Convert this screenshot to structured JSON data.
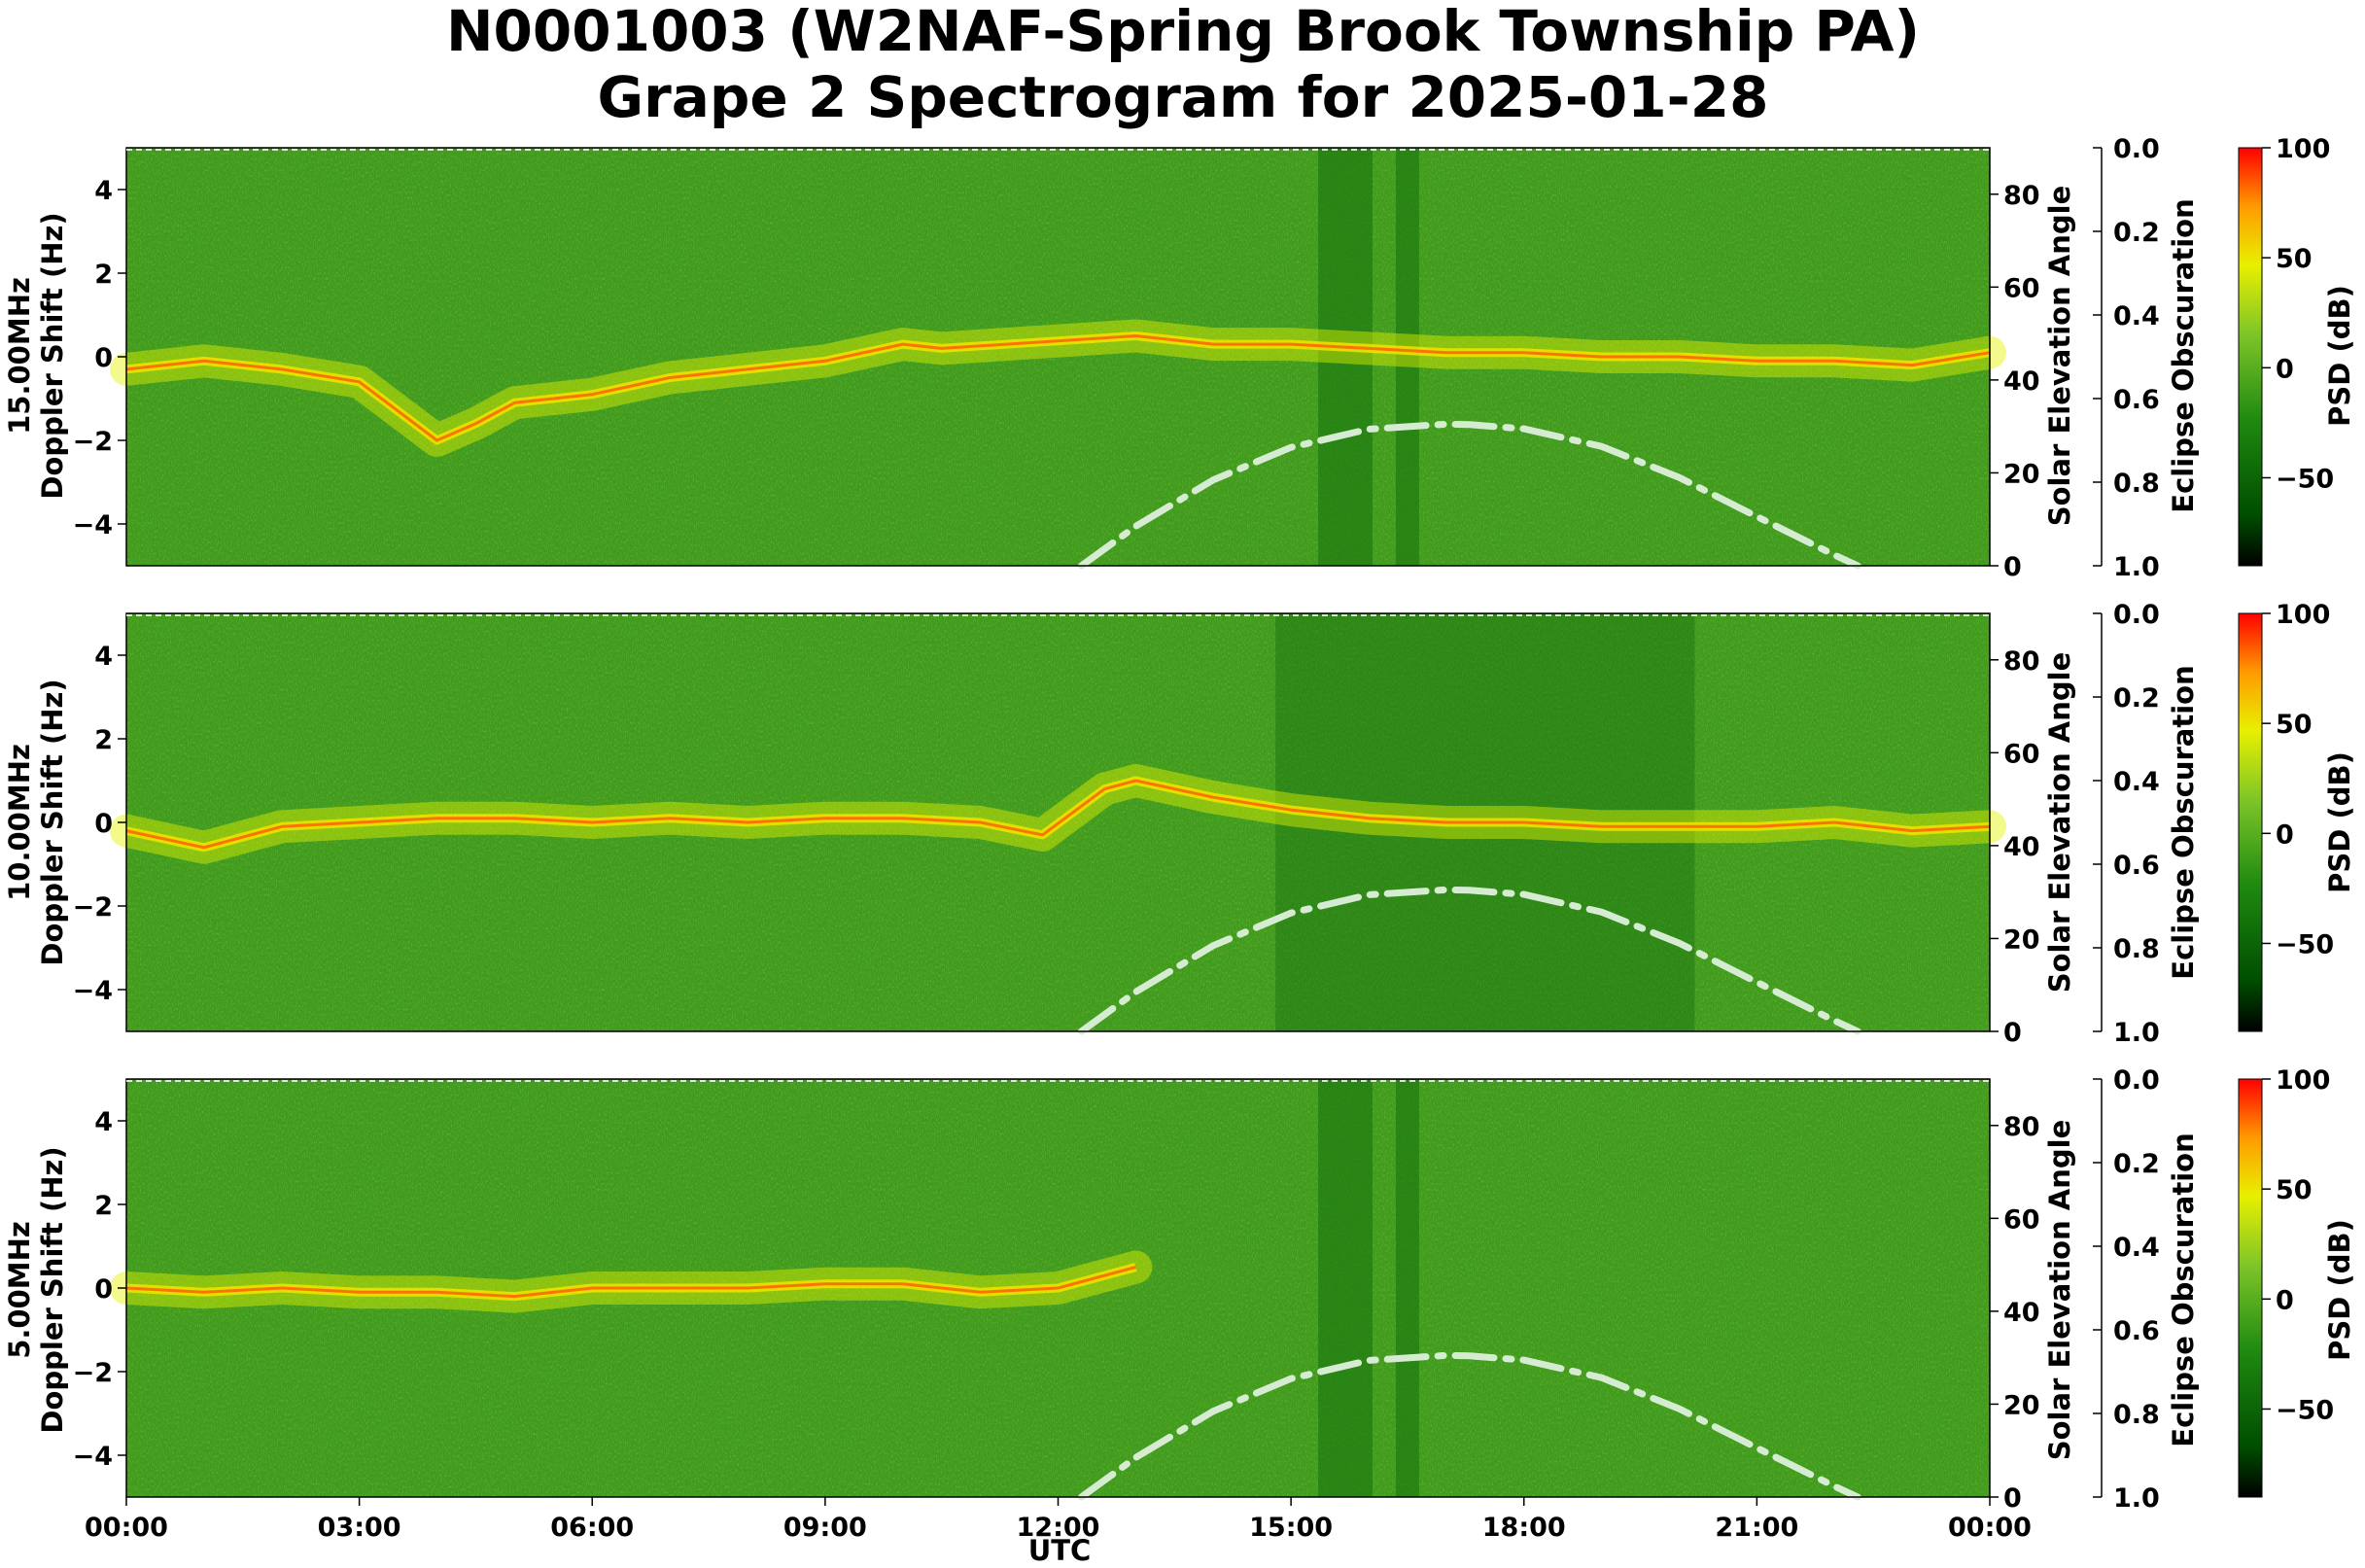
{
  "title": {
    "line1": "N0001003 (W2NAF-Spring Brook Township PA)",
    "line2": "Grape 2 Spectrogram for 2025-01-28"
  },
  "x_axis": {
    "label": "UTC",
    "ticks": [
      "00:00",
      "03:00",
      "06:00",
      "09:00",
      "12:00",
      "15:00",
      "18:00",
      "21:00",
      "00:00"
    ]
  },
  "colors": {
    "colormap": [
      "#000000",
      "#006400",
      "#2e9c14",
      "#9acd32",
      "#ffff00",
      "#ff9800",
      "#ff0000"
    ],
    "elevation_curve": "#d6ecd2",
    "background_field": "#3f9a1e"
  },
  "chart_data": [
    {
      "type": "heatmap",
      "frequency_label": "15.00MHz",
      "ylabel": "Doppler Shift (Hz)",
      "ylim": [
        -5,
        5
      ],
      "yticks": [
        "−4",
        "−2",
        "0",
        "2",
        "4"
      ],
      "xlabel": "UTC",
      "xlim_hours": [
        0,
        24
      ],
      "doppler_trace": {
        "hours": [
          0,
          1,
          2,
          3,
          4,
          4.5,
          5,
          6,
          7,
          8,
          9,
          10,
          10.5,
          13,
          14,
          15,
          16,
          17,
          18,
          19,
          20,
          21,
          22,
          23,
          24
        ],
        "shift_hz": [
          -0.3,
          -0.1,
          -0.3,
          -0.6,
          -2.0,
          -1.6,
          -1.1,
          -0.9,
          -0.5,
          -0.3,
          -0.1,
          0.3,
          0.2,
          0.5,
          0.3,
          0.3,
          0.2,
          0.1,
          0.1,
          0.0,
          0.0,
          -0.1,
          -0.1,
          -0.2,
          0.1
        ]
      },
      "right_axis_1": {
        "label": "Solar Elevation Angle",
        "ylim": [
          0,
          90
        ],
        "ticks": [
          "0",
          "20",
          "40",
          "60",
          "80"
        ]
      },
      "right_axis_2": {
        "label": "Eclipse Obscuration",
        "ylim": [
          1.0,
          0.0
        ],
        "ticks": [
          "0.0",
          "0.2",
          "0.4",
          "0.6",
          "0.8",
          "1.0"
        ]
      },
      "colorbar": {
        "label": "PSD (dB)",
        "range": [
          -90,
          100
        ],
        "ticks": [
          "100",
          "50",
          "0",
          "−50"
        ]
      },
      "solar_elevation": {
        "hours": [
          12.3,
          13,
          14,
          15,
          16,
          17,
          17.3,
          18,
          19,
          20,
          21,
          22,
          22.3
        ],
        "degrees": [
          0,
          8.5,
          18.5,
          25.5,
          29.4,
          30.5,
          30.4,
          29.5,
          25.7,
          19,
          10.6,
          2.3,
          0
        ]
      }
    },
    {
      "type": "heatmap",
      "frequency_label": "10.00MHz",
      "ylabel": "Doppler Shift (Hz)",
      "ylim": [
        -5,
        5
      ],
      "yticks": [
        "−4",
        "−2",
        "0",
        "2",
        "4"
      ],
      "xlabel": "UTC",
      "xlim_hours": [
        0,
        24
      ],
      "doppler_trace": {
        "hours": [
          0,
          1,
          2,
          3,
          4,
          5,
          6,
          7,
          8,
          9,
          10,
          11,
          11.8,
          12.6,
          13,
          14,
          15,
          16,
          17,
          18,
          19,
          20,
          21,
          22,
          23,
          24
        ],
        "shift_hz": [
          -0.2,
          -0.6,
          -0.1,
          0.0,
          0.1,
          0.1,
          0.0,
          0.1,
          0.0,
          0.1,
          0.1,
          0.0,
          -0.3,
          0.8,
          1.0,
          0.6,
          0.3,
          0.1,
          0.0,
          0.0,
          -0.1,
          -0.1,
          -0.1,
          0.0,
          -0.2,
          -0.1
        ]
      },
      "right_axis_1": {
        "label": "Solar Elevation Angle",
        "ylim": [
          0,
          90
        ],
        "ticks": [
          "0",
          "20",
          "40",
          "60",
          "80"
        ]
      },
      "right_axis_2": {
        "label": "Eclipse Obscuration",
        "ylim": [
          1.0,
          0.0
        ],
        "ticks": [
          "0.0",
          "0.2",
          "0.4",
          "0.6",
          "0.8",
          "1.0"
        ]
      },
      "colorbar": {
        "label": "PSD (dB)",
        "range": [
          -90,
          100
        ],
        "ticks": [
          "100",
          "50",
          "0",
          "−50"
        ]
      },
      "solar_elevation": {
        "hours": [
          12.3,
          13,
          14,
          15,
          16,
          17,
          17.3,
          18,
          19,
          20,
          21,
          22,
          22.3
        ],
        "degrees": [
          0,
          8.5,
          18.5,
          25.5,
          29.4,
          30.5,
          30.4,
          29.5,
          25.7,
          19,
          10.6,
          2.3,
          0
        ]
      }
    },
    {
      "type": "heatmap",
      "frequency_label": "5.00MHz",
      "ylabel": "Doppler Shift (Hz)",
      "ylim": [
        -5,
        5
      ],
      "yticks": [
        "−4",
        "−2",
        "0",
        "2",
        "4"
      ],
      "xlabel": "UTC",
      "xlim_hours": [
        0,
        24
      ],
      "doppler_trace": {
        "hours": [
          0,
          1,
          2,
          3,
          4,
          5,
          6,
          7,
          8,
          9,
          10,
          11,
          12,
          13
        ],
        "shift_hz": [
          0.0,
          -0.1,
          0.0,
          -0.1,
          -0.1,
          -0.2,
          0.0,
          0.0,
          0.0,
          0.1,
          0.1,
          -0.1,
          0.0,
          0.5
        ]
      },
      "right_axis_1": {
        "label": "Solar Elevation Angle",
        "ylim": [
          0,
          90
        ],
        "ticks": [
          "0",
          "20",
          "40",
          "60",
          "80"
        ]
      },
      "right_axis_2": {
        "label": "Eclipse Obscuration",
        "ylim": [
          1.0,
          0.0
        ],
        "ticks": [
          "0.0",
          "0.2",
          "0.4",
          "0.6",
          "0.8",
          "1.0"
        ]
      },
      "colorbar": {
        "label": "PSD (dB)",
        "range": [
          -90,
          100
        ],
        "ticks": [
          "100",
          "50",
          "0",
          "−50"
        ]
      },
      "solar_elevation": {
        "hours": [
          12.3,
          13,
          14,
          15,
          16,
          17,
          17.3,
          18,
          19,
          20,
          21,
          22,
          22.3
        ],
        "degrees": [
          0,
          8.5,
          18.5,
          25.5,
          29.4,
          30.5,
          30.4,
          29.5,
          25.7,
          19,
          10.6,
          2.3,
          0
        ]
      }
    }
  ]
}
